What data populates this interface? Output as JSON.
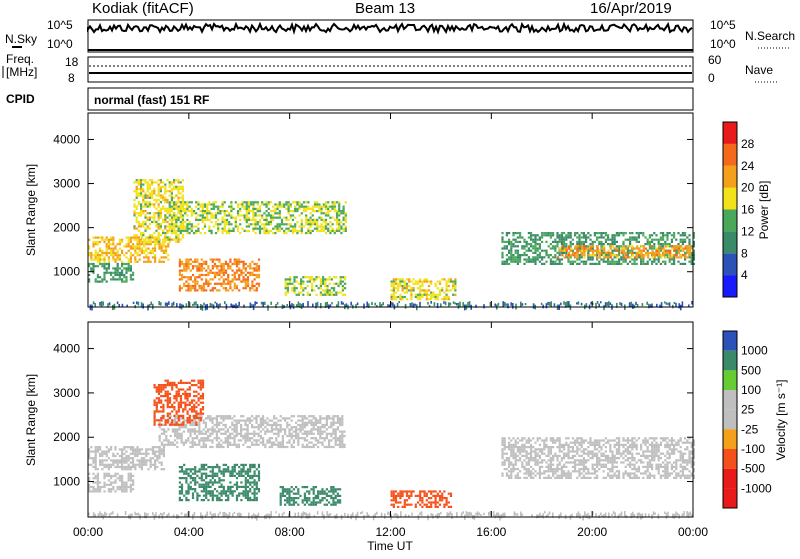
{
  "header": {
    "station": "Kodiak (fitACF)",
    "beam": "Beam 13",
    "date": "16/Apr/2019"
  },
  "strips": {
    "nsky_label": "N.Sky",
    "nsky_ticks": [
      "10^5",
      "10^0"
    ],
    "nsearch_label": "N.Search",
    "nsearch_ticks": [
      "10^5",
      "10^0"
    ],
    "freq_label_1": "Freq.",
    "freq_label_2": "[MHz]",
    "freq_ticks": [
      "18",
      "8"
    ],
    "nave_label": "Nave",
    "nave_ticks": [
      "60",
      "0"
    ],
    "cpid_label": "CPID",
    "cpid_text": "normal (fast) 151 RF"
  },
  "colors": {
    "power_scale": [
      "#1a1aff",
      "#2a52b8",
      "#3a8a6a",
      "#4aa85a",
      "#f2e21a",
      "#f5a01a",
      "#f56a1a",
      "#e81a1a"
    ],
    "velocity_scale": [
      "#e81a1a",
      "#f5501a",
      "#f5a01a",
      "#bfbfbf",
      "#bfbfbf",
      "#66cc33",
      "#3a8a6a",
      "#2a52b8"
    ]
  },
  "chart_data": [
    {
      "type": "heatmap",
      "panel": "power",
      "ylabel": "Slant Range [km]",
      "yticks": [
        "4000",
        "3000",
        "2000",
        "1000"
      ],
      "ylim": [
        200,
        4600
      ],
      "xticks": [
        "00:00",
        "04:00",
        "08:00",
        "12:00",
        "16:00",
        "20:00",
        "00:00"
      ],
      "xlim_hours": [
        0,
        24
      ],
      "colorbar_label": "Power [dB]",
      "colorbar_ticks": [
        "28",
        "24",
        "20",
        "16",
        "12",
        "8",
        "4"
      ],
      "colorbar_range": [
        0,
        32
      ],
      "regions": [
        {
          "t0": 0.0,
          "t1": 3.2,
          "r0": 1250,
          "r1": 1800,
          "value": 20
        },
        {
          "t0": 1.8,
          "t1": 3.8,
          "r0": 1700,
          "r1": 3100,
          "value": 18
        },
        {
          "t0": 3.2,
          "t1": 10.2,
          "r0": 1900,
          "r1": 2600,
          "value": 16
        },
        {
          "t0": 0.0,
          "t1": 1.8,
          "r0": 800,
          "r1": 1200,
          "value": 12
        },
        {
          "t0": 3.6,
          "t1": 6.8,
          "r0": 600,
          "r1": 1300,
          "value": 24
        },
        {
          "t0": 7.8,
          "t1": 10.2,
          "r0": 500,
          "r1": 900,
          "value": 16
        },
        {
          "t0": 12.0,
          "t1": 14.6,
          "r0": 400,
          "r1": 850,
          "value": 18
        },
        {
          "t0": 16.4,
          "t1": 24.0,
          "r0": 1200,
          "r1": 1900,
          "value": 12
        },
        {
          "t0": 18.6,
          "t1": 24.0,
          "r0": 1350,
          "r1": 1600,
          "value": 22
        }
      ]
    },
    {
      "type": "heatmap",
      "panel": "velocity",
      "ylabel": "Slant Range [km]",
      "yticks": [
        "4000",
        "3000",
        "2000",
        "1000"
      ],
      "ylim": [
        200,
        4600
      ],
      "xticks": [
        "00:00",
        "04:00",
        "08:00",
        "12:00",
        "16:00",
        "20:00",
        "00:00"
      ],
      "xlim_hours": [
        0,
        24
      ],
      "xlabel": "Time UT",
      "colorbar_label": "Velocity [m s⁻¹]",
      "colorbar_ticks": [
        "1000",
        "500",
        "100",
        "25",
        "-25",
        "-100",
        "-500",
        "-1000"
      ],
      "regions": [
        {
          "t0": 0.0,
          "t1": 3.0,
          "r0": 1300,
          "r1": 1800,
          "value": 0
        },
        {
          "t0": 2.8,
          "t1": 10.2,
          "r0": 1800,
          "r1": 2500,
          "value": 0
        },
        {
          "t0": 2.6,
          "t1": 4.6,
          "r0": 2300,
          "r1": 3300,
          "value": -300
        },
        {
          "t0": 0.0,
          "t1": 1.8,
          "r0": 800,
          "r1": 1200,
          "value": 10
        },
        {
          "t0": 3.6,
          "t1": 6.8,
          "r0": 600,
          "r1": 1400,
          "value": 150
        },
        {
          "t0": 7.6,
          "t1": 10.0,
          "r0": 500,
          "r1": 900,
          "value": 400
        },
        {
          "t0": 12.0,
          "t1": 14.4,
          "r0": 450,
          "r1": 800,
          "value": -300
        },
        {
          "t0": 16.4,
          "t1": 24.0,
          "r0": 1100,
          "r1": 2000,
          "value": 0
        }
      ]
    }
  ]
}
